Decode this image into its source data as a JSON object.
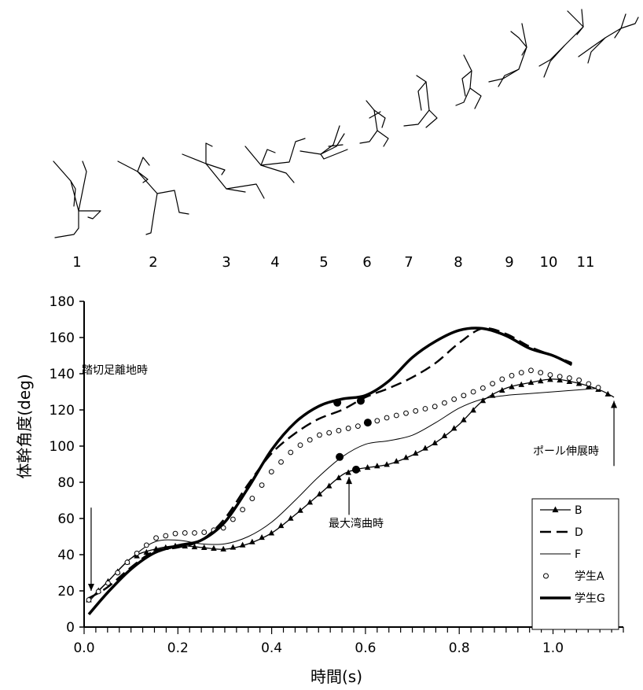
{
  "stick_figure_frames": [
    "1",
    "2",
    "3",
    "4",
    "5",
    "6",
    "7",
    "8",
    "9",
    "10",
    "11"
  ],
  "chart_data": {
    "type": "line",
    "title": "",
    "xlabel": "時間(s)",
    "ylabel": "体幹角度(deg)",
    "xlim": [
      0.0,
      1.15
    ],
    "ylim": [
      0,
      180
    ],
    "x_ticks": [
      "0.0",
      "0.2",
      "0.4",
      "0.6",
      "0.8",
      "1.0"
    ],
    "y_ticks": [
      "0",
      "20",
      "40",
      "60",
      "80",
      "100",
      "120",
      "140",
      "160",
      "180"
    ],
    "legend_position": "right",
    "series": [
      {
        "name": "B",
        "style": "line-triangle",
        "x": [
          0.01,
          0.05,
          0.1,
          0.15,
          0.2,
          0.25,
          0.3,
          0.35,
          0.4,
          0.45,
          0.5,
          0.55,
          0.58,
          0.6,
          0.65,
          0.7,
          0.75,
          0.8,
          0.85,
          0.9,
          0.95,
          1.0,
          1.05,
          1.1,
          1.13
        ],
        "y": [
          15,
          25,
          38,
          43,
          45,
          44,
          43,
          46,
          52,
          62,
          73,
          84,
          87,
          88,
          90,
          95,
          102,
          112,
          125,
          132,
          135,
          137,
          135,
          131,
          127
        ]
      },
      {
        "name": "D",
        "style": "dashed",
        "x": [
          0.01,
          0.05,
          0.1,
          0.15,
          0.2,
          0.25,
          0.3,
          0.35,
          0.4,
          0.45,
          0.5,
          0.55,
          0.6,
          0.65,
          0.7,
          0.75,
          0.8,
          0.85,
          0.9,
          0.95,
          1.0,
          1.04
        ],
        "y": [
          16,
          22,
          33,
          42,
          44,
          48,
          60,
          79,
          96,
          107,
          115,
          120,
          127,
          132,
          138,
          146,
          157,
          165,
          162,
          155,
          150,
          146
        ]
      },
      {
        "name": "F",
        "style": "thin",
        "x": [
          0.01,
          0.05,
          0.1,
          0.15,
          0.2,
          0.25,
          0.3,
          0.35,
          0.4,
          0.45,
          0.5,
          0.55,
          0.6,
          0.65,
          0.7,
          0.75,
          0.8,
          0.85,
          0.9,
          0.95,
          1.0,
          1.05,
          1.1
        ],
        "y": [
          14,
          25,
          38,
          47,
          48,
          46,
          46,
          50,
          58,
          70,
          83,
          94,
          101,
          103,
          106,
          113,
          121,
          126,
          128,
          129,
          130,
          131,
          132
        ]
      },
      {
        "name": "学生A",
        "style": "open-circle",
        "x": [
          0.01,
          0.05,
          0.1,
          0.15,
          0.2,
          0.25,
          0.3,
          0.35,
          0.4,
          0.45,
          0.5,
          0.55,
          0.6,
          0.65,
          0.7,
          0.75,
          0.8,
          0.85,
          0.9,
          0.95,
          1.0,
          1.05,
          1.1
        ],
        "y": [
          15,
          24,
          38,
          49,
          52,
          52,
          55,
          68,
          86,
          99,
          106,
          109,
          112,
          116,
          119,
          122,
          127,
          132,
          138,
          142,
          139,
          137,
          132
        ]
      },
      {
        "name": "学生G",
        "style": "thick",
        "x": [
          0.01,
          0.05,
          0.1,
          0.15,
          0.2,
          0.25,
          0.3,
          0.35,
          0.4,
          0.45,
          0.5,
          0.55,
          0.6,
          0.65,
          0.7,
          0.75,
          0.8,
          0.85,
          0.9,
          0.95,
          1.0,
          1.04
        ],
        "y": [
          7,
          19,
          32,
          41,
          45,
          48,
          58,
          77,
          98,
          113,
          122,
          126,
          128,
          136,
          149,
          158,
          164,
          165,
          161,
          154,
          150,
          145
        ]
      }
    ],
    "markers": [
      {
        "series": "学生G",
        "x": 0.54,
        "y": 124
      },
      {
        "series": "D",
        "x": 0.59,
        "y": 125
      },
      {
        "series": "学生A",
        "x": 0.605,
        "y": 113
      },
      {
        "series": "F",
        "x": 0.545,
        "y": 94
      },
      {
        "series": "B",
        "x": 0.58,
        "y": 87
      }
    ],
    "annotations": [
      {
        "text": "踏切足離地時",
        "arrow_x": 0.015,
        "arrow_from_y": 66,
        "arrow_to_y": 20
      },
      {
        "text": "最大湾曲時",
        "arrow_x": 0.565,
        "arrow_from_y": 62,
        "arrow_to_y": 83
      },
      {
        "text": "ポール伸展時",
        "arrow_x": 1.13,
        "arrow_from_y": 89,
        "arrow_to_y": 125
      }
    ]
  }
}
